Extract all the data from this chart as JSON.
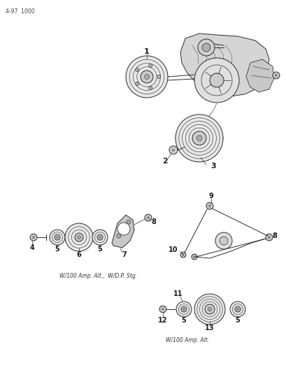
{
  "background_color": "#ffffff",
  "page_ref": "4-97  1000",
  "caption1": "W/100 Amp. Alt.,  W/D.P. Stg.",
  "caption2": "W/100 Amp. Alt.",
  "fig_size": [
    4.1,
    5.33
  ],
  "dpi": 100,
  "line_color": "#2a2a2a",
  "fill_light": "#d8d8d8",
  "fill_med": "#b8b8b8"
}
